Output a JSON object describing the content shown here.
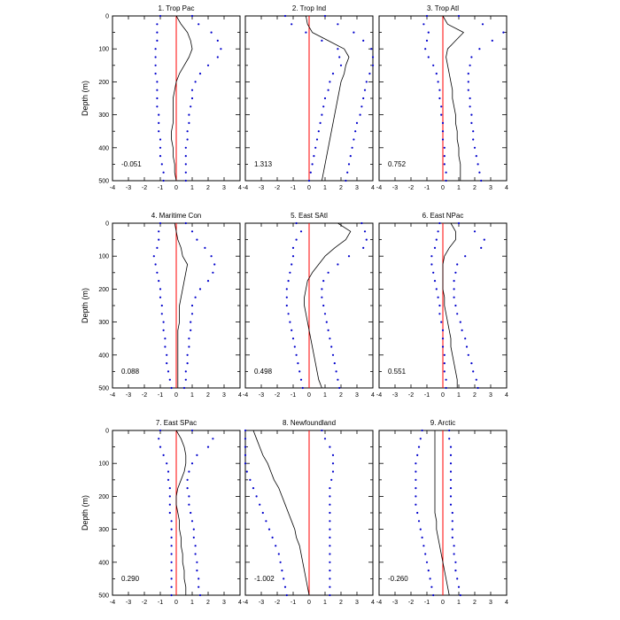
{
  "colors": {
    "zero_line": "#ff0000",
    "mean_line": "#000000",
    "spread_dots": "#0000cc",
    "frame": "#000000"
  },
  "chart_data": {
    "type": "line",
    "ylabel": "Depth (m)",
    "xlim": [
      -4,
      4
    ],
    "ylim": [
      0,
      500
    ],
    "y_reversed": true,
    "xticks": [
      -4,
      -3,
      -2,
      -1,
      0,
      1,
      2,
      3,
      4
    ],
    "yticks": [
      0,
      100,
      200,
      300,
      400,
      500
    ],
    "depth": [
      0,
      25,
      50,
      75,
      100,
      125,
      150,
      175,
      200,
      225,
      250,
      275,
      300,
      325,
      350,
      375,
      400,
      425,
      450,
      475,
      500
    ],
    "panels": [
      {
        "title": "1. Trop Pac",
        "stat": "-0.051",
        "mean": [
          0.0,
          0.3,
          0.7,
          0.9,
          1.0,
          0.8,
          0.5,
          0.2,
          0.0,
          -0.1,
          -0.2,
          -0.2,
          -0.2,
          -0.2,
          -0.3,
          -0.3,
          -0.2,
          -0.2,
          -0.1,
          -0.1,
          0.0
        ],
        "lower": [
          -1.0,
          -1.2,
          -1.2,
          -1.2,
          -1.3,
          -1.3,
          -1.3,
          -1.3,
          -1.2,
          -1.2,
          -1.2,
          -1.2,
          -1.1,
          -1.1,
          -1.1,
          -1.0,
          -1.0,
          -1.0,
          -0.9,
          -0.8,
          -0.8
        ],
        "upper": [
          1.0,
          1.4,
          2.2,
          2.6,
          2.8,
          2.6,
          2.0,
          1.5,
          1.2,
          1.0,
          1.0,
          0.9,
          0.8,
          0.8,
          0.7,
          0.7,
          0.6,
          0.6,
          0.6,
          0.6,
          0.6
        ]
      },
      {
        "title": "2. Trop Ind",
        "stat": "1.313",
        "mean": [
          -0.2,
          -0.1,
          0.2,
          1.2,
          2.2,
          2.5,
          2.3,
          2.2,
          2.0,
          1.9,
          1.8,
          1.7,
          1.6,
          1.5,
          1.4,
          1.3,
          1.2,
          1.1,
          1.0,
          0.9,
          0.8
        ],
        "lower": [
          -1.5,
          -1.1,
          -0.2,
          0.8,
          1.8,
          1.9,
          2.0,
          1.5,
          1.3,
          1.2,
          1.0,
          0.9,
          0.8,
          0.7,
          0.6,
          0.5,
          0.4,
          0.3,
          0.2,
          0.1,
          0.0
        ],
        "upper": [
          1.0,
          1.8,
          2.8,
          3.4,
          3.9,
          4.0,
          4.0,
          3.8,
          3.6,
          3.5,
          3.4,
          3.3,
          3.2,
          3.0,
          2.9,
          2.8,
          2.7,
          2.6,
          2.5,
          2.4,
          2.3
        ]
      },
      {
        "title": "3. Trop Atl",
        "stat": "0.752",
        "mean": [
          0.0,
          0.3,
          1.3,
          0.8,
          0.3,
          0.2,
          0.3,
          0.4,
          0.5,
          0.6,
          0.6,
          0.7,
          0.8,
          0.8,
          0.9,
          0.9,
          1.0,
          1.0,
          1.1,
          1.1,
          1.1
        ],
        "lower": [
          -1.0,
          -1.2,
          -0.9,
          -1.0,
          -1.1,
          -0.9,
          -0.6,
          -0.4,
          -0.3,
          -0.2,
          -0.2,
          -0.1,
          -0.1,
          0.0,
          0.0,
          0.0,
          0.1,
          0.1,
          0.1,
          0.2,
          0.2
        ],
        "upper": [
          1.0,
          2.5,
          3.8,
          3.1,
          2.3,
          1.8,
          1.7,
          1.6,
          1.6,
          1.6,
          1.7,
          1.7,
          1.8,
          1.8,
          1.9,
          1.9,
          2.0,
          2.1,
          2.2,
          2.3,
          2.4
        ]
      },
      {
        "title": "4. Maritime Con",
        "stat": "0.088",
        "mean": [
          -0.1,
          0.0,
          0.1,
          0.3,
          0.4,
          0.7,
          0.6,
          0.5,
          0.4,
          0.3,
          0.2,
          0.2,
          0.2,
          0.1,
          0.1,
          0.1,
          0.1,
          0.1,
          0.1,
          0.1,
          0.1
        ],
        "lower": [
          -1.0,
          -1.1,
          -1.1,
          -1.2,
          -1.4,
          -1.3,
          -1.2,
          -1.1,
          -1.0,
          -1.0,
          -0.9,
          -0.9,
          -0.8,
          -0.8,
          -0.7,
          -0.7,
          -0.6,
          -0.6,
          -0.5,
          -0.4,
          -0.3
        ],
        "upper": [
          0.6,
          1.0,
          1.3,
          1.8,
          2.2,
          2.4,
          2.3,
          2.0,
          1.5,
          1.2,
          1.0,
          1.0,
          0.9,
          0.9,
          0.8,
          0.8,
          0.7,
          0.7,
          0.6,
          0.6,
          0.5
        ]
      },
      {
        "title": "5. East SAtl",
        "stat": "0.498",
        "mean": [
          1.8,
          2.6,
          2.3,
          1.6,
          1.0,
          0.6,
          0.2,
          -0.1,
          -0.2,
          -0.3,
          -0.3,
          -0.2,
          -0.1,
          0.0,
          0.1,
          0.2,
          0.3,
          0.4,
          0.5,
          0.6,
          0.8
        ],
        "lower": [
          -0.8,
          -0.5,
          -0.8,
          -1.0,
          -1.0,
          -1.1,
          -1.2,
          -1.3,
          -1.4,
          -1.4,
          -1.4,
          -1.3,
          -1.2,
          -1.1,
          -1.0,
          -0.9,
          -0.8,
          -0.7,
          -0.6,
          -0.5,
          -0.4
        ],
        "upper": [
          3.3,
          3.5,
          3.6,
          3.4,
          2.5,
          1.8,
          1.2,
          0.9,
          0.8,
          0.8,
          0.9,
          1.0,
          1.1,
          1.2,
          1.3,
          1.4,
          1.5,
          1.6,
          1.7,
          1.8,
          1.9
        ]
      },
      {
        "title": "6. East NPac",
        "stat": "0.551",
        "mean": [
          0.5,
          0.8,
          0.8,
          0.4,
          0.1,
          0.0,
          0.0,
          0.0,
          0.0,
          0.1,
          0.1,
          0.2,
          0.3,
          0.4,
          0.5,
          0.5,
          0.6,
          0.7,
          0.8,
          0.9,
          0.9
        ],
        "lower": [
          -0.2,
          -0.3,
          -0.4,
          -0.5,
          -0.7,
          -0.7,
          -0.6,
          -0.5,
          -0.4,
          -0.3,
          -0.2,
          -0.2,
          -0.1,
          0.0,
          0.0,
          0.0,
          0.1,
          0.1,
          0.1,
          0.2,
          0.2
        ],
        "upper": [
          1.0,
          2.0,
          2.6,
          2.4,
          1.4,
          0.9,
          0.8,
          0.7,
          0.7,
          0.7,
          0.8,
          0.9,
          1.1,
          1.2,
          1.4,
          1.5,
          1.6,
          1.8,
          1.9,
          2.1,
          2.2
        ]
      },
      {
        "title": "7. East SPac",
        "stat": "0.290",
        "mean": [
          0.0,
          0.3,
          0.5,
          0.6,
          0.6,
          0.5,
          0.3,
          0.1,
          0.0,
          0.0,
          0.1,
          0.2,
          0.2,
          0.3,
          0.3,
          0.4,
          0.4,
          0.5,
          0.5,
          0.6,
          0.6
        ],
        "lower": [
          -1.0,
          -1.1,
          -1.0,
          -0.8,
          -0.6,
          -0.5,
          -0.5,
          -0.4,
          -0.4,
          -0.4,
          -0.4,
          -0.3,
          -0.3,
          -0.3,
          -0.3,
          -0.3,
          -0.3,
          -0.3,
          -0.3,
          -0.3,
          -0.3
        ],
        "upper": [
          1.0,
          2.3,
          2.0,
          1.3,
          1.0,
          0.8,
          0.7,
          0.7,
          0.8,
          0.8,
          0.9,
          1.0,
          1.1,
          1.1,
          1.2,
          1.2,
          1.3,
          1.3,
          1.4,
          1.4,
          1.5
        ]
      },
      {
        "title": "8. Newfoundland",
        "stat": "-1.002",
        "mean": [
          -3.5,
          -3.3,
          -3.1,
          -2.9,
          -2.6,
          -2.4,
          -2.2,
          -1.9,
          -1.7,
          -1.5,
          -1.3,
          -1.1,
          -0.9,
          -0.8,
          -0.6,
          -0.5,
          -0.4,
          -0.3,
          -0.2,
          -0.1,
          0.0
        ],
        "lower": [
          -4.0,
          -4.0,
          -4.0,
          -4.0,
          -4.0,
          -3.9,
          -3.7,
          -3.5,
          -3.3,
          -3.1,
          -2.9,
          -2.7,
          -2.5,
          -2.3,
          -2.1,
          -1.9,
          -1.8,
          -1.7,
          -1.6,
          -1.5,
          -1.4
        ],
        "upper": [
          0.8,
          1.0,
          1.3,
          1.5,
          1.5,
          1.5,
          1.4,
          1.3,
          1.3,
          1.3,
          1.3,
          1.3,
          1.3,
          1.3,
          1.3,
          1.3,
          1.3,
          1.3,
          1.3,
          1.3,
          1.3
        ]
      },
      {
        "title": "9. Arctic",
        "stat": "-0.260",
        "mean": [
          -0.5,
          -0.5,
          -0.5,
          -0.5,
          -0.5,
          -0.5,
          -0.5,
          -0.5,
          -0.5,
          -0.5,
          -0.5,
          -0.4,
          -0.4,
          -0.3,
          -0.2,
          -0.1,
          0.0,
          0.1,
          0.2,
          0.3,
          0.4
        ],
        "lower": [
          -1.3,
          -1.4,
          -1.5,
          -1.6,
          -1.7,
          -1.7,
          -1.7,
          -1.7,
          -1.7,
          -1.7,
          -1.6,
          -1.5,
          -1.4,
          -1.3,
          -1.2,
          -1.1,
          -1.0,
          -0.9,
          -0.8,
          -0.7,
          -0.6
        ],
        "upper": [
          0.4,
          0.4,
          0.5,
          0.5,
          0.5,
          0.5,
          0.5,
          0.5,
          0.5,
          0.5,
          0.6,
          0.6,
          0.6,
          0.6,
          0.7,
          0.7,
          0.8,
          0.8,
          0.9,
          1.0,
          1.1
        ]
      }
    ]
  }
}
